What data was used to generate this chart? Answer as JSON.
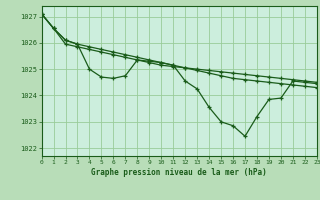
{
  "title": "Graphe pression niveau de la mer (hPa)",
  "background_color": "#b8ddb8",
  "plot_background_color": "#cceedd",
  "grid_color": "#99cc99",
  "line_color": "#1a5c1a",
  "xlim": [
    0,
    23
  ],
  "ylim": [
    1021.7,
    1027.4
  ],
  "yticks": [
    1022,
    1023,
    1024,
    1025,
    1026,
    1027
  ],
  "xticks": [
    0,
    1,
    2,
    3,
    4,
    5,
    6,
    7,
    8,
    9,
    10,
    11,
    12,
    13,
    14,
    15,
    16,
    17,
    18,
    19,
    20,
    21,
    22,
    23
  ],
  "series1": [
    1027.1,
    1026.55,
    1026.1,
    1025.95,
    1025.85,
    1025.75,
    1025.65,
    1025.55,
    1025.45,
    1025.35,
    1025.25,
    1025.15,
    1025.05,
    1024.95,
    1024.85,
    1024.75,
    1024.65,
    1024.6,
    1024.55,
    1024.5,
    1024.45,
    1024.4,
    1024.35,
    1024.3
  ],
  "series2": [
    1027.1,
    1026.55,
    1025.95,
    1025.85,
    1025.75,
    1025.65,
    1025.55,
    1025.45,
    1025.35,
    1025.25,
    1025.15,
    1025.1,
    1025.05,
    1025.0,
    1024.95,
    1024.9,
    1024.85,
    1024.8,
    1024.75,
    1024.7,
    1024.65,
    1024.6,
    1024.55,
    1024.5
  ],
  "series3": [
    1027.1,
    1026.55,
    1026.1,
    1025.95,
    1025.0,
    1024.7,
    1024.65,
    1024.75,
    1025.35,
    1025.3,
    1025.25,
    1025.15,
    1024.55,
    1024.25,
    1023.55,
    1023.0,
    1022.85,
    1022.45,
    1023.2,
    1023.85,
    1023.9,
    1024.55,
    1024.5,
    1024.45
  ],
  "marker": "+",
  "marker_size": 3.5,
  "linewidth": 0.9
}
